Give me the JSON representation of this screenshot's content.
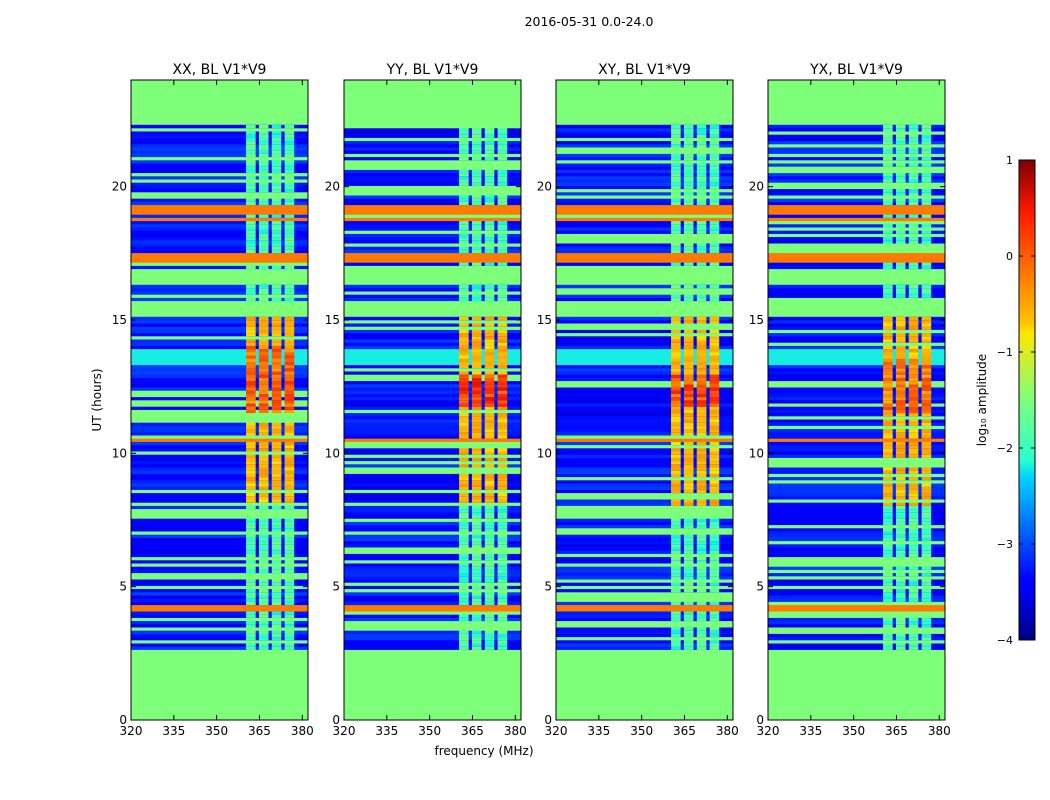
{
  "chart_data": {
    "type": "heatmap",
    "suptitle": "2016-05-31 0.0-24.0",
    "xlabel": "frequency (MHz)",
    "ylabel": "UT (hours)",
    "xlim": [
      320,
      382
    ],
    "ylim": [
      0,
      24
    ],
    "xticks": [
      320,
      335,
      350,
      365,
      380
    ],
    "yticks": [
      0,
      5,
      10,
      15,
      20
    ],
    "colorbar": {
      "label": "log₁₀ amplitude",
      "range": [
        -4,
        1
      ],
      "ticks": [
        1,
        0,
        -1,
        -2,
        -3,
        -4
      ],
      "tick_labels": [
        "1",
        "0",
        "−1",
        "−2",
        "−3",
        "−4"
      ]
    },
    "flagged_time_ranges_hours": [
      [
        0,
        2.7
      ],
      [
        15.1,
        15.7
      ],
      [
        16.3,
        16.9
      ],
      [
        22.3,
        24
      ]
    ],
    "rfi_band_mhz": [
      360,
      378
    ],
    "panels": [
      {
        "title": "XX, BL V1*V9",
        "peak_ut_hours": [
          11.5,
          14.0
        ],
        "peak_log_amplitude": 0.3
      },
      {
        "title": "YY, BL V1*V9",
        "peak_ut_hours": [
          11.8,
          13.0
        ],
        "peak_log_amplitude": 0.6
      },
      {
        "title": "XY, BL V1*V9",
        "peak_ut_hours": [
          11.8,
          13.0
        ],
        "peak_log_amplitude": 0.5
      },
      {
        "title": "YX, BL V1*V9",
        "peak_ut_hours": [
          11.5,
          13.5
        ],
        "peak_log_amplitude": 0.2
      }
    ]
  }
}
